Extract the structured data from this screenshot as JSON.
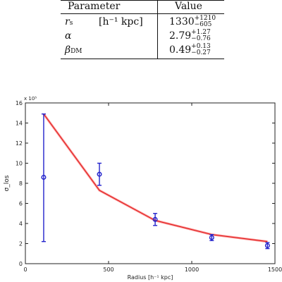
{
  "table": {
    "header_param": "Parameter",
    "header_value": "Value",
    "rows": [
      {
        "symbol": "r",
        "symbol_sub": "s",
        "unit": "[h⁻¹ kpc]",
        "value": "1330",
        "plus": "+1210",
        "minus": "−605"
      },
      {
        "symbol": "α",
        "symbol_sub": "",
        "unit": "",
        "value": "2.79",
        "plus": "+1.27",
        "minus": "−0.76"
      },
      {
        "symbol": "β",
        "symbol_sub": "DM",
        "unit": "",
        "value": "0.49",
        "plus": "+0.13",
        "minus": "−0.27"
      }
    ]
  },
  "chart_data": {
    "type": "line",
    "xlabel": "Radius [h⁻¹ kpc]",
    "ylabel": "σ_los",
    "y_multiplier_label": "x 10⁵",
    "xlim": [
      0,
      1500
    ],
    "ylim": [
      0,
      16
    ],
    "xticks": [
      0,
      500,
      1000,
      1500
    ],
    "yticks": [
      0,
      2,
      4,
      6,
      8,
      10,
      12,
      14,
      16
    ],
    "grid": false,
    "series": [
      {
        "kind": "errorbar",
        "color": "#2222cc",
        "points": [
          {
            "x": 110,
            "y": 8.6,
            "ylo": 2.2,
            "yhi": 14.9
          },
          {
            "x": 445,
            "y": 8.9,
            "ylo": 7.8,
            "yhi": 10.0
          },
          {
            "x": 780,
            "y": 4.4,
            "ylo": 3.8,
            "yhi": 5.0
          },
          {
            "x": 1120,
            "y": 2.6,
            "ylo": 2.3,
            "yhi": 2.9
          },
          {
            "x": 1455,
            "y": 1.8,
            "ylo": 1.5,
            "yhi": 2.1
          }
        ]
      },
      {
        "kind": "model",
        "color": "#dd2222",
        "x": [
          110,
          445,
          780,
          1120,
          1455
        ],
        "y": [
          14.9,
          7.3,
          4.3,
          2.9,
          2.2
        ]
      }
    ]
  }
}
